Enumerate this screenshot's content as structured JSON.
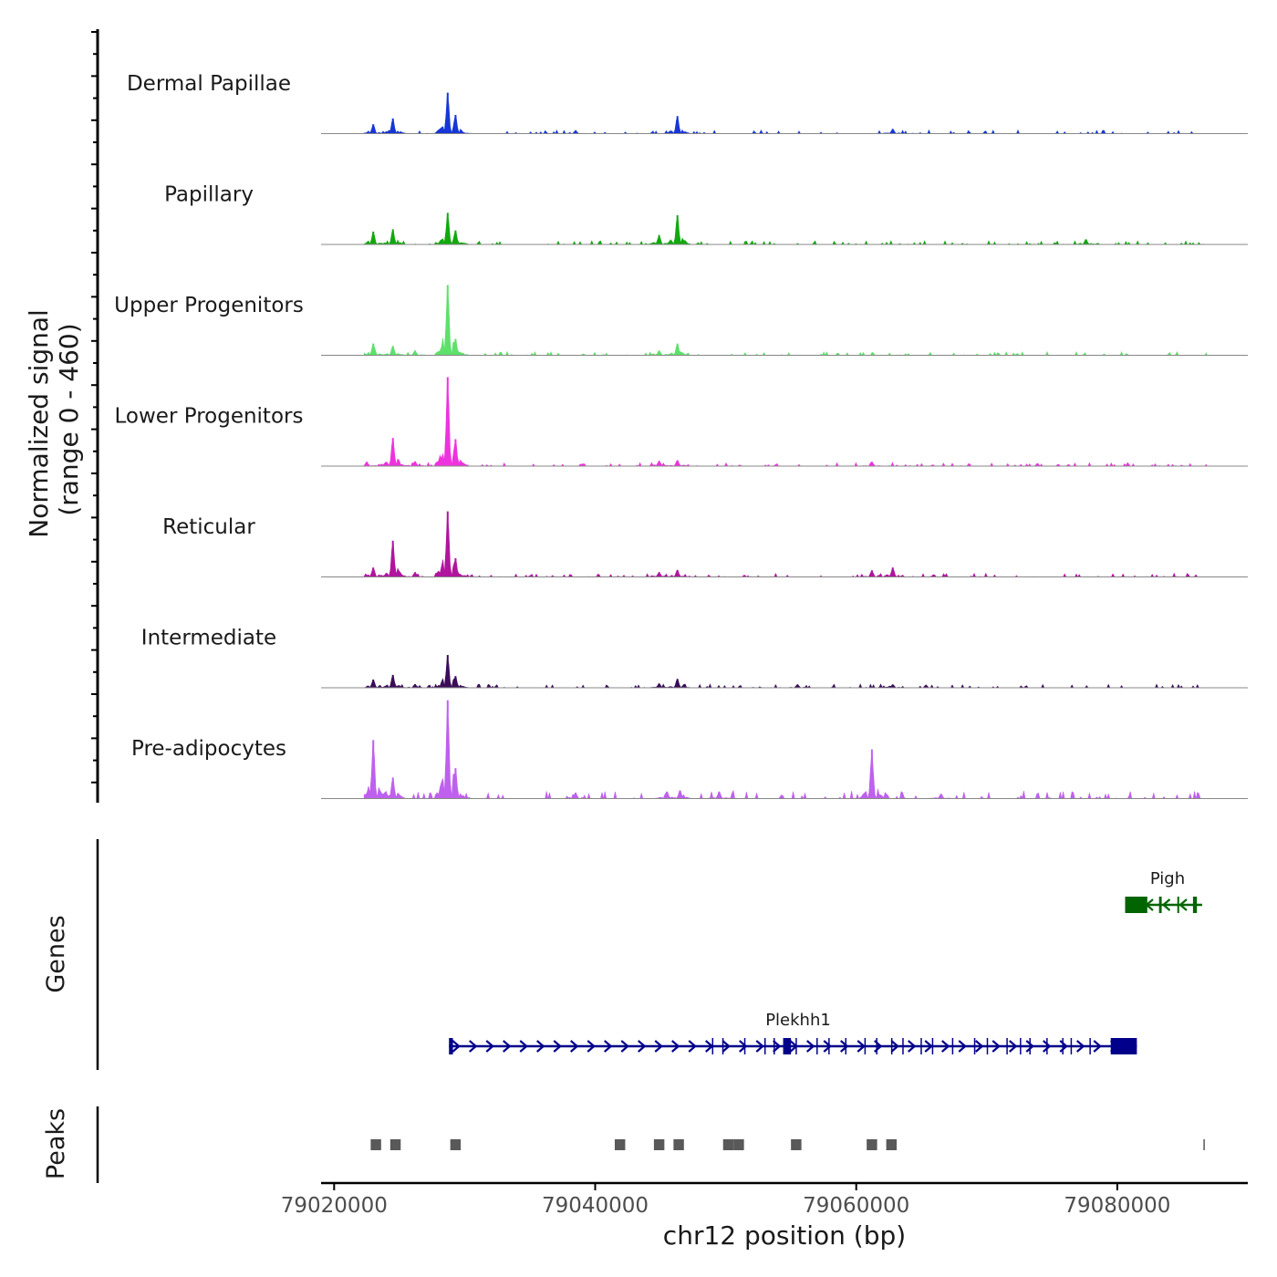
{
  "chart_data": {
    "type": "area",
    "title": "",
    "region": {
      "chrom": "chr12",
      "start": 79019000,
      "end": 79090000
    },
    "xlabel": "chr12 position (bp)",
    "x_ticks": [
      79020000,
      79040000,
      79060000,
      79080000
    ],
    "x_tick_labels": [
      "79020000",
      "79040000",
      "79060000",
      "79080000"
    ],
    "ylabel_line1": "Normalized signal",
    "ylabel_line2": "(range 0 - 460)",
    "ylim": [
      0,
      460
    ],
    "series": [
      {
        "name": "Dermal Papillae",
        "color": "#1637d6",
        "peaks": [
          [
            79023000,
            40
          ],
          [
            79024500,
            65
          ],
          [
            79028700,
            175
          ],
          [
            79029300,
            80
          ],
          [
            79038500,
            12
          ],
          [
            79046300,
            75
          ],
          [
            79062800,
            20
          ]
        ]
      },
      {
        "name": "Papillary",
        "color": "#12a80f",
        "peaks": [
          [
            79023000,
            55
          ],
          [
            79024500,
            65
          ],
          [
            79028700,
            135
          ],
          [
            79029300,
            60
          ],
          [
            79044900,
            40
          ],
          [
            79046300,
            125
          ],
          [
            79077600,
            22
          ]
        ]
      },
      {
        "name": "Upper Progenitors",
        "color": "#5ee06a",
        "peaks": [
          [
            79023000,
            50
          ],
          [
            79024500,
            40
          ],
          [
            79026200,
            20
          ],
          [
            79028700,
            300
          ],
          [
            79029300,
            70
          ],
          [
            79044900,
            20
          ],
          [
            79046300,
            50
          ]
        ]
      },
      {
        "name": "Lower Progenitors",
        "color": "#ee33de",
        "peaks": [
          [
            79022500,
            18
          ],
          [
            79024500,
            120
          ],
          [
            79026200,
            20
          ],
          [
            79028700,
            380
          ],
          [
            79029300,
            115
          ],
          [
            79044900,
            22
          ],
          [
            79046300,
            25
          ],
          [
            79061200,
            18
          ]
        ]
      },
      {
        "name": "Reticular",
        "color": "#b0159e",
        "peaks": [
          [
            79023000,
            40
          ],
          [
            79024500,
            155
          ],
          [
            79026200,
            20
          ],
          [
            79028700,
            280
          ],
          [
            79029300,
            80
          ],
          [
            79044900,
            20
          ],
          [
            79046300,
            30
          ],
          [
            79061200,
            28
          ],
          [
            79062800,
            40
          ]
        ]
      },
      {
        "name": "Intermediate",
        "color": "#3a0c58",
        "peaks": [
          [
            79023000,
            35
          ],
          [
            79024500,
            55
          ],
          [
            79026200,
            15
          ],
          [
            79028700,
            140
          ],
          [
            79029300,
            50
          ],
          [
            79044900,
            18
          ],
          [
            79046300,
            38
          ],
          [
            79055500,
            14
          ],
          [
            79062800,
            14
          ]
        ]
      },
      {
        "name": "Pre-adipocytes",
        "color": "#bf60ee",
        "peaks": [
          [
            79023000,
            250
          ],
          [
            79024500,
            90
          ],
          [
            79028700,
            420
          ],
          [
            79029300,
            130
          ],
          [
            79038500,
            25
          ],
          [
            79045500,
            30
          ],
          [
            79046500,
            35
          ],
          [
            79049500,
            30
          ],
          [
            79061200,
            210
          ],
          [
            79066500,
            20
          ]
        ]
      }
    ],
    "genes": [
      {
        "name": "Pigh",
        "strand": "-",
        "color": "#006400",
        "start": 79080600,
        "end": 79086500,
        "exons": [
          [
            79080600,
            79082300
          ],
          [
            79083200,
            79083400
          ],
          [
            79084600,
            79084700
          ],
          [
            79085800,
            79086100
          ]
        ]
      },
      {
        "name": "Plekhh1",
        "strand": "+",
        "color": "#00008b",
        "start": 79028800,
        "end": 79081500,
        "exons": [
          [
            79028800,
            79029100
          ],
          [
            79054400,
            79055000
          ],
          [
            79079500,
            79081500
          ]
        ]
      }
    ],
    "peaks": [
      [
        79022800,
        79023600
      ],
      [
        79024300,
        79025100
      ],
      [
        79028900,
        79029700
      ],
      [
        79041500,
        79042300
      ],
      [
        79044500,
        79045300
      ],
      [
        79046000,
        79046800
      ],
      [
        79049800,
        79050600
      ],
      [
        79050600,
        79051400
      ],
      [
        79055000,
        79055800
      ],
      [
        79060800,
        79061600
      ],
      [
        79062300,
        79063100
      ],
      [
        79086600,
        79086700
      ]
    ],
    "panel_labels": {
      "genes": "Genes",
      "peaks": "Peaks"
    }
  }
}
